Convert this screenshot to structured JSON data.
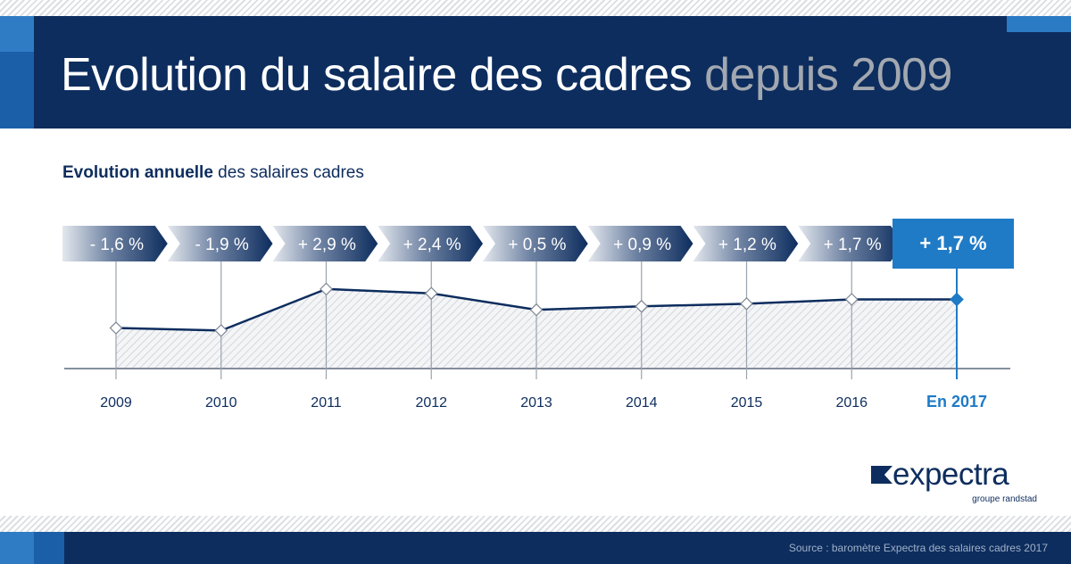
{
  "header": {
    "title_main": "Evolution du salaire des cadres",
    "title_accent": "depuis 2009"
  },
  "subtitle": {
    "bold": "Evolution annuelle",
    "rest": " des salaires cadres"
  },
  "chart_data": {
    "type": "line",
    "x": [
      "2009",
      "2010",
      "2011",
      "2012",
      "2013",
      "2014",
      "2015",
      "2016",
      "En 2017"
    ],
    "values": [
      -1.6,
      -1.9,
      2.9,
      2.4,
      0.5,
      0.9,
      1.2,
      1.7,
      1.7
    ],
    "value_labels": [
      "- 1,6 %",
      "- 1,9 %",
      "+ 2,9 %",
      "+ 2,4 %",
      "+ 0,5 %",
      "+ 0,9 %",
      "+ 1,2 %",
      "+ 1,7 %",
      "+ 1,7 %"
    ],
    "highlight_index": 8,
    "colors": {
      "line": "#0d2d5e",
      "highlight": "#1f7bc6",
      "banner_dark": "#0d2d5e",
      "banner_light": "#e4e8ee",
      "axis_label": "#0d2d5e"
    }
  },
  "logo": {
    "name": "expectra",
    "tagline": "groupe randstad"
  },
  "footer": {
    "source": "Source : baromètre Expectra des salaires cadres 2017"
  }
}
